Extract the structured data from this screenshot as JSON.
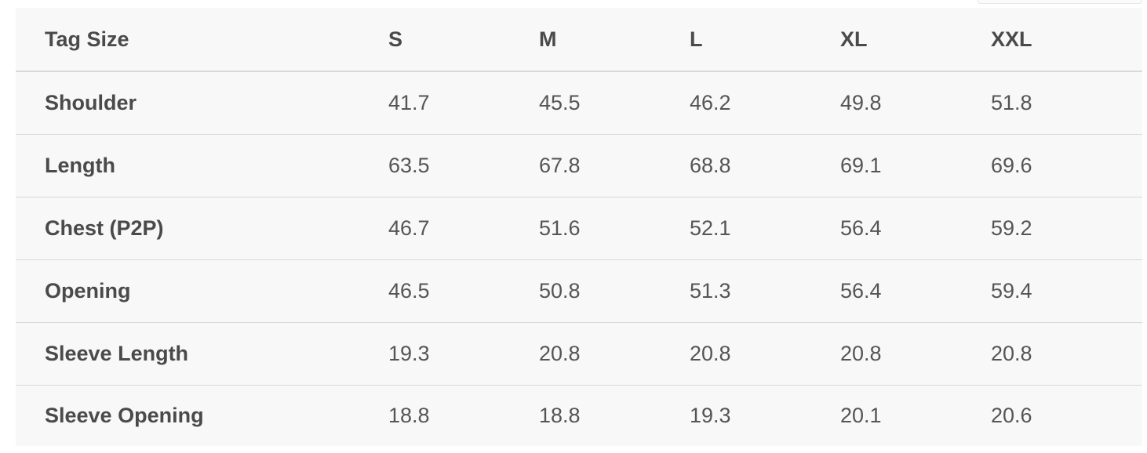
{
  "table": {
    "header": {
      "label": "Tag Size",
      "sizes": [
        "S",
        "M",
        "L",
        "XL",
        "XXL"
      ]
    },
    "rows": [
      {
        "label": "Shoulder",
        "values": [
          "41.7",
          "45.5",
          "46.2",
          "49.8",
          "51.8"
        ]
      },
      {
        "label": "Length",
        "values": [
          "63.5",
          "67.8",
          "68.8",
          "69.1",
          "69.6"
        ]
      },
      {
        "label": "Chest (P2P)",
        "values": [
          "46.7",
          "51.6",
          "52.1",
          "56.4",
          "59.2"
        ]
      },
      {
        "label": "Opening",
        "values": [
          "46.5",
          "50.8",
          "51.3",
          "56.4",
          "59.4"
        ]
      },
      {
        "label": "Sleeve Length",
        "values": [
          "19.3",
          "20.8",
          "20.8",
          "20.8",
          "20.8"
        ]
      },
      {
        "label": "Sleeve Opening",
        "values": [
          "18.8",
          "18.8",
          "19.3",
          "20.1",
          "20.6"
        ]
      }
    ]
  }
}
